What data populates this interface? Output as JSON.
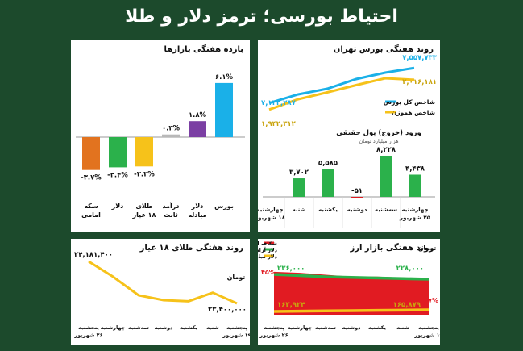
{
  "main_title": "احتیاط بورسی؛ ترمز دلار و طلا",
  "colors": {
    "background": "#1c4a2c",
    "panel": "#ffffff",
    "blue": "#1ab0e8",
    "yellow": "#f6c21a",
    "green": "#2bb14b",
    "red": "#e11b22",
    "purple": "#7b3fa3",
    "gray": "#b8b8b8",
    "orange": "#e2731f"
  },
  "chart_data": [
    {
      "id": "weekly-markets",
      "type": "bar",
      "title": "بازده هفتگی بازارها",
      "categories": [
        "بورس",
        "دلار مبادله",
        "درآمد ثابت",
        "طلای ۱۸ عیار",
        "دلار",
        "سکه امامی"
      ],
      "values": [
        6.1,
        1.8,
        0.3,
        -3.3,
        -3.4,
        -3.7
      ],
      "data_labels": [
        "۶.۱%",
        "۱.۸%",
        "۰.۳%",
        "-۳.۳%",
        "-۳.۴%",
        "-۳.۷%"
      ],
      "colors": [
        "#1ab0e8",
        "#7b3fa3",
        "#b8b8b8",
        "#f6c21a",
        "#2bb14b",
        "#e2731f"
      ]
    },
    {
      "id": "tehran-bourse",
      "type": "line",
      "title": "روند هفتگی بورس تهران",
      "series": [
        {
          "name": "شاخص کل بورس",
          "color": "#1ab0e8",
          "values": [
            7122287,
            7230000,
            7300000,
            7420000,
            7500000,
            7557733
          ],
          "start_label": "۷,۱۲۲,۲۸۷",
          "end_label": "۷,۵۵۷,۷۳۳"
        },
        {
          "name": "شاخص هموزن",
          "color": "#f6c21a",
          "values": [
            1942312,
            1968000,
            1985000,
            2003000,
            2020000,
            2016181
          ],
          "start_label": "۱,۹۴۲,۳۱۲",
          "end_label": "۲,۰۱۶,۱۸۱"
        }
      ]
    },
    {
      "id": "money-flow",
      "type": "bar",
      "title": "ورود (خروج) پول حقیقی",
      "subtitle": "هزار میلیارد تومان",
      "categories": [
        "چهارشنبه ۲۵ شهریور",
        "سه‌شنبه",
        "دوشنبه",
        "یکشنبه",
        "شنبه",
        "چهارشنبه ۱۸ شهریور"
      ],
      "values": [
        4438,
        8228,
        -51,
        5585,
        3702,
        0
      ],
      "data_labels": [
        "۴,۴۳۸",
        "۸,۲۲۸",
        "-۵۱",
        "۵,۵۸۵",
        "۳,۷۰۲",
        ""
      ],
      "colors": [
        "#2bb14b",
        "#2bb14b",
        "#e11b22",
        "#2bb14b",
        "#2bb14b",
        "#2bb14b"
      ]
    },
    {
      "id": "gold-18",
      "type": "line",
      "title": "روند هفتگی طلای ۱۸ عیار",
      "unit": "تومان",
      "x": [
        "پنجشنبه ۱۹ شهریور",
        "شنبه",
        "یکشنبه",
        "دوشنبه",
        "سه‌شنبه",
        "چهارشنبه",
        "پنجشنبه ۲۶ شهریور"
      ],
      "series": [
        {
          "name": "",
          "color": "#f6c21a",
          "values": [
            24181400,
            23900000,
            23550000,
            23460000,
            23440000,
            23600000,
            23400000
          ],
          "start_label": "۲۴,۱۸۱,۴۰۰",
          "end_label": "۲۳,۴۰۰,۰۰۰"
        }
      ]
    },
    {
      "id": "fx-market",
      "type": "area",
      "title": "روند هفتگی بازار ارز",
      "unit": "تومان",
      "x": [
        "پنجشنبه ۱۹ شهریور",
        "شنبه",
        "یکشنبه",
        "دوشنبه",
        "سه‌شنبه",
        "چهارشنبه",
        "پنجشنبه ۲۶ شهریور"
      ],
      "series": [
        {
          "name": "شکاف ارزی",
          "color": "#e11b22",
          "values": [
            45,
            44,
            42,
            40,
            40,
            39,
            37
          ],
          "start_label": "۴۵%",
          "end_label": "۳۷%"
        },
        {
          "name": "دلار آزاد",
          "color": "#2bb14b",
          "values": [
            236000,
            234000,
            232000,
            231000,
            230000,
            229000,
            228000
          ],
          "start_label": "۲۳۶,۰۰۰",
          "end_label": "۲۲۸,۰۰۰"
        },
        {
          "name": "دلار مبادله",
          "color": "#f6c21a",
          "values": [
            162924,
            163500,
            164000,
            164500,
            165000,
            165400,
            165879
          ],
          "start_label": "۱۶۲,۹۲۴",
          "end_label": "۱۶۵,۸۷۹"
        }
      ]
    }
  ]
}
